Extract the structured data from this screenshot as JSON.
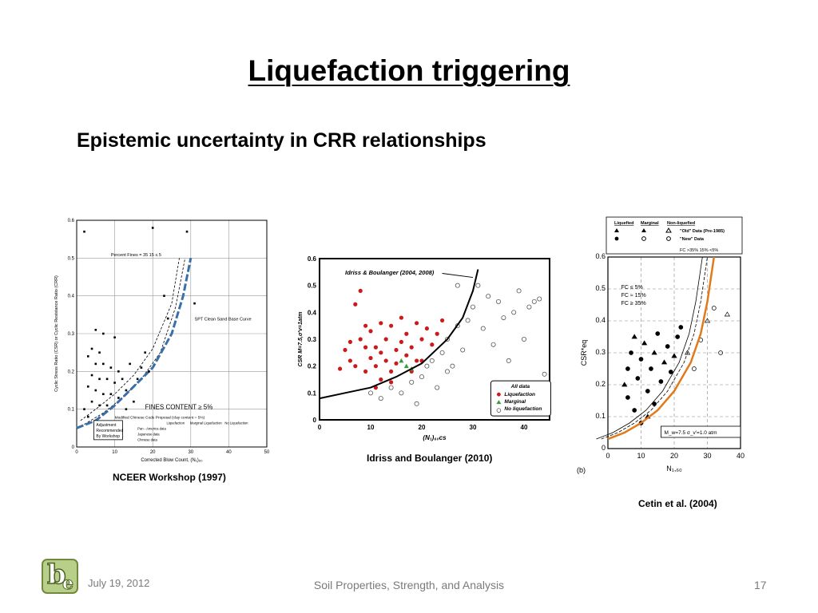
{
  "slide": {
    "title": "Liquefaction triggering",
    "subtitle": "Epistemic uncertainty in CRR relationships"
  },
  "footer": {
    "date": "July 19, 2012",
    "course": "Soil Properties, Strength, and Analysis",
    "page_number": "17"
  },
  "logo": {
    "letters": "be"
  },
  "colors": {
    "liquefaction_red": "#cc1a1a",
    "marginal_green": "#3a9a3a",
    "nceer_blue": "#3a6fa8",
    "cetin_orange": "#e07a1a"
  },
  "chart_data": [
    {
      "type": "scatter",
      "caption": "NCEER Workshop (1997)",
      "xlabel": "Corrected Blow Count, (N₁)₆₀",
      "ylabel": "Cyclic Stress Ratio (CSR) or Cyclic Resistance Ratio (CRR)",
      "xlim": [
        0,
        50
      ],
      "ylim": [
        0,
        0.6
      ],
      "x_ticks": [
        "0",
        "10",
        "20",
        "30",
        "40",
        "50"
      ],
      "y_ticks": [
        "0",
        "0.1",
        "0.2",
        "0.3",
        "0.4",
        "0.5",
        "0.6"
      ],
      "grid": true,
      "annotations": {
        "percent_fines": "Percent Fines = 35    15    ≤ 5",
        "base_curve": "SPT Clean Sand Base Curve",
        "fines_content": "FINES CONTENT ≥ 5%",
        "chinese_proposal": "Modified Chinese Code Proposal (clay content = 5%)",
        "adjustment_box": [
          "Adjustment",
          "Recommended",
          "By Workshop"
        ]
      },
      "legend": {
        "headers": [
          "Liquefaction",
          "Marginal Liquefaction",
          "No Liquefaction"
        ],
        "rows": [
          "Pan - America data",
          "Japanese data",
          "Chinese data"
        ]
      },
      "curves": [
        {
          "name": "35",
          "x": [
            1,
            5,
            10,
            15,
            20,
            25,
            27
          ],
          "y": [
            0.07,
            0.1,
            0.14,
            0.19,
            0.26,
            0.38,
            0.5
          ]
        },
        {
          "name": "15",
          "x": [
            2,
            7,
            12,
            17,
            22,
            26,
            28.5
          ],
          "y": [
            0.06,
            0.09,
            0.13,
            0.18,
            0.25,
            0.37,
            0.5
          ]
        },
        {
          "name": "≤ 5",
          "x": [
            0,
            5,
            10,
            15,
            20,
            25,
            28,
            30
          ],
          "y": [
            0.05,
            0.07,
            0.11,
            0.16,
            0.21,
            0.3,
            0.4,
            0.5
          ]
        }
      ],
      "points": [
        {
          "x": 2,
          "y": 0.57
        },
        {
          "x": 20,
          "y": 0.58
        },
        {
          "x": 29,
          "y": 0.57
        },
        {
          "x": 5,
          "y": 0.31
        },
        {
          "x": 7,
          "y": 0.3
        },
        {
          "x": 10,
          "y": 0.29
        },
        {
          "x": 4,
          "y": 0.26
        },
        {
          "x": 6,
          "y": 0.25
        },
        {
          "x": 3,
          "y": 0.24
        },
        {
          "x": 5,
          "y": 0.22
        },
        {
          "x": 7,
          "y": 0.22
        },
        {
          "x": 9,
          "y": 0.21
        },
        {
          "x": 11,
          "y": 0.2
        },
        {
          "x": 4,
          "y": 0.19
        },
        {
          "x": 6,
          "y": 0.18
        },
        {
          "x": 8,
          "y": 0.18
        },
        {
          "x": 10,
          "y": 0.17
        },
        {
          "x": 12,
          "y": 0.18
        },
        {
          "x": 3,
          "y": 0.16
        },
        {
          "x": 5,
          "y": 0.15
        },
        {
          "x": 7,
          "y": 0.14
        },
        {
          "x": 9,
          "y": 0.14
        },
        {
          "x": 11,
          "y": 0.13
        },
        {
          "x": 13,
          "y": 0.15
        },
        {
          "x": 4,
          "y": 0.12
        },
        {
          "x": 6,
          "y": 0.11
        },
        {
          "x": 8,
          "y": 0.11
        },
        {
          "x": 14,
          "y": 0.22
        },
        {
          "x": 17,
          "y": 0.21
        },
        {
          "x": 19,
          "y": 0.2
        },
        {
          "x": 16,
          "y": 0.18
        },
        {
          "x": 2,
          "y": 0.1
        },
        {
          "x": 3,
          "y": 0.08
        },
        {
          "x": 13,
          "y": 0.1
        },
        {
          "x": 15,
          "y": 0.12
        },
        {
          "x": 24,
          "y": 0.34
        },
        {
          "x": 31,
          "y": 0.38
        },
        {
          "x": 23,
          "y": 0.4
        },
        {
          "x": 18,
          "y": 0.25
        }
      ]
    },
    {
      "type": "scatter",
      "caption": "Idriss and Boulanger (2010)",
      "xlabel": "(N₁)₆₀cs",
      "ylabel": "CSR M=7.5,σ'v=1atm",
      "xlim": [
        0,
        45
      ],
      "ylim": [
        0,
        0.6
      ],
      "x_ticks": [
        "0",
        "10",
        "20",
        "30",
        "40"
      ],
      "y_ticks": [
        "0",
        "0.1",
        "0.2",
        "0.3",
        "0.4",
        "0.5",
        "0.6"
      ],
      "curve_label": "Idriss & Boulanger (2004, 2008)",
      "legend_title": "All data",
      "series": [
        {
          "name": "Liquefaction",
          "points": [
            {
              "x": 5,
              "y": 0.26
            },
            {
              "x": 6,
              "y": 0.22
            },
            {
              "x": 7,
              "y": 0.2
            },
            {
              "x": 7,
              "y": 0.43
            },
            {
              "x": 8,
              "y": 0.48
            },
            {
              "x": 8,
              "y": 0.3
            },
            {
              "x": 9,
              "y": 0.27
            },
            {
              "x": 9,
              "y": 0.18
            },
            {
              "x": 10,
              "y": 0.23
            },
            {
              "x": 10,
              "y": 0.33
            },
            {
              "x": 11,
              "y": 0.2
            },
            {
              "x": 11,
              "y": 0.27
            },
            {
              "x": 12,
              "y": 0.25
            },
            {
              "x": 12,
              "y": 0.15
            },
            {
              "x": 13,
              "y": 0.3
            },
            {
              "x": 13,
              "y": 0.22
            },
            {
              "x": 14,
              "y": 0.35
            },
            {
              "x": 14,
              "y": 0.18
            },
            {
              "x": 15,
              "y": 0.26
            },
            {
              "x": 15,
              "y": 0.21
            },
            {
              "x": 16,
              "y": 0.38
            },
            {
              "x": 16,
              "y": 0.29
            },
            {
              "x": 17,
              "y": 0.24
            },
            {
              "x": 17,
              "y": 0.32
            },
            {
              "x": 18,
              "y": 0.27
            },
            {
              "x": 19,
              "y": 0.36
            },
            {
              "x": 19,
              "y": 0.22
            },
            {
              "x": 20,
              "y": 0.3
            },
            {
              "x": 21,
              "y": 0.34
            },
            {
              "x": 22,
              "y": 0.28
            },
            {
              "x": 24,
              "y": 0.37
            },
            {
              "x": 6,
              "y": 0.29
            },
            {
              "x": 12,
              "y": 0.36
            },
            {
              "x": 9,
              "y": 0.35
            },
            {
              "x": 18,
              "y": 0.18
            },
            {
              "x": 4,
              "y": 0.19
            },
            {
              "x": 14,
              "y": 0.14
            },
            {
              "x": 11,
              "y": 0.12
            },
            {
              "x": 20,
              "y": 0.22
            },
            {
              "x": 23,
              "y": 0.32
            }
          ]
        },
        {
          "name": "Marginal",
          "points": [
            {
              "x": 17,
              "y": 0.2
            },
            {
              "x": 18,
              "y": 0.19
            },
            {
              "x": 16,
              "y": 0.22
            }
          ]
        },
        {
          "name": "No liquefaction",
          "points": [
            {
              "x": 10,
              "y": 0.1
            },
            {
              "x": 12,
              "y": 0.08
            },
            {
              "x": 14,
              "y": 0.12
            },
            {
              "x": 16,
              "y": 0.1
            },
            {
              "x": 18,
              "y": 0.14
            },
            {
              "x": 20,
              "y": 0.16
            },
            {
              "x": 21,
              "y": 0.2
            },
            {
              "x": 22,
              "y": 0.22
            },
            {
              "x": 24,
              "y": 0.25
            },
            {
              "x": 25,
              "y": 0.3
            },
            {
              "x": 26,
              "y": 0.2
            },
            {
              "x": 27,
              "y": 0.35
            },
            {
              "x": 28,
              "y": 0.26
            },
            {
              "x": 29,
              "y": 0.37
            },
            {
              "x": 30,
              "y": 0.42
            },
            {
              "x": 31,
              "y": 0.5
            },
            {
              "x": 32,
              "y": 0.34
            },
            {
              "x": 33,
              "y": 0.46
            },
            {
              "x": 34,
              "y": 0.28
            },
            {
              "x": 35,
              "y": 0.44
            },
            {
              "x": 36,
              "y": 0.38
            },
            {
              "x": 37,
              "y": 0.22
            },
            {
              "x": 38,
              "y": 0.4
            },
            {
              "x": 39,
              "y": 0.48
            },
            {
              "x": 40,
              "y": 0.3
            },
            {
              "x": 41,
              "y": 0.42
            },
            {
              "x": 42,
              "y": 0.44
            },
            {
              "x": 43,
              "y": 0.45
            },
            {
              "x": 44,
              "y": 0.17
            },
            {
              "x": 19,
              "y": 0.06
            },
            {
              "x": 23,
              "y": 0.12
            },
            {
              "x": 25,
              "y": 0.18
            },
            {
              "x": 27,
              "y": 0.5
            },
            {
              "x": 34,
              "y": 0.12
            }
          ]
        }
      ],
      "curve": {
        "x": [
          0,
          5,
          10,
          15,
          20,
          25,
          28,
          30,
          31
        ],
        "y": [
          0.08,
          0.1,
          0.12,
          0.16,
          0.21,
          0.3,
          0.38,
          0.48,
          0.56
        ]
      }
    },
    {
      "type": "scatter",
      "caption": "Cetin et al. (2004)",
      "panel_label": "(b)",
      "xlabel": "N₁,₆₀",
      "ylabel": "CSR*eq",
      "xlim": [
        0,
        40
      ],
      "ylim": [
        0,
        0.6
      ],
      "x_ticks": [
        "0",
        "10",
        "20",
        "30",
        "40"
      ],
      "y_ticks": [
        "0",
        "0.1",
        "0.2",
        "0.3",
        "0.4",
        "0.5",
        "0.6"
      ],
      "grid": true,
      "legend": {
        "headers": [
          "Liquefied",
          "Marginal",
          "Non-liquefied"
        ],
        "old": "\"Old\" Data (Pre-1985)",
        "new": "\"New\" Data",
        "fc_header": "FC  >35%  15%  <5%"
      },
      "curve_labels": [
        "FC ≤ 5%",
        "FC ≈ 15%",
        "FC ≥ 35%"
      ],
      "condition": "M_w=7.5  σ_v'=1.0 atm",
      "points": [
        {
          "x": 5,
          "y": 0.2
        },
        {
          "x": 6,
          "y": 0.25
        },
        {
          "x": 7,
          "y": 0.3
        },
        {
          "x": 8,
          "y": 0.35
        },
        {
          "x": 9,
          "y": 0.22
        },
        {
          "x": 10,
          "y": 0.28
        },
        {
          "x": 11,
          "y": 0.33
        },
        {
          "x": 12,
          "y": 0.18
        },
        {
          "x": 13,
          "y": 0.25
        },
        {
          "x": 14,
          "y": 0.3
        },
        {
          "x": 15,
          "y": 0.36
        },
        {
          "x": 16,
          "y": 0.21
        },
        {
          "x": 17,
          "y": 0.27
        },
        {
          "x": 18,
          "y": 0.32
        },
        {
          "x": 19,
          "y": 0.24
        },
        {
          "x": 20,
          "y": 0.29
        },
        {
          "x": 21,
          "y": 0.35
        },
        {
          "x": 22,
          "y": 0.38
        },
        {
          "x": 24,
          "y": 0.3
        },
        {
          "x": 26,
          "y": 0.25
        },
        {
          "x": 28,
          "y": 0.34
        },
        {
          "x": 30,
          "y": 0.4
        },
        {
          "x": 32,
          "y": 0.44
        },
        {
          "x": 34,
          "y": 0.3
        },
        {
          "x": 36,
          "y": 0.42
        },
        {
          "x": 8,
          "y": 0.12
        },
        {
          "x": 10,
          "y": 0.08
        },
        {
          "x": 12,
          "y": 0.1
        },
        {
          "x": 14,
          "y": 0.14
        },
        {
          "x": 6,
          "y": 0.16
        }
      ]
    }
  ]
}
